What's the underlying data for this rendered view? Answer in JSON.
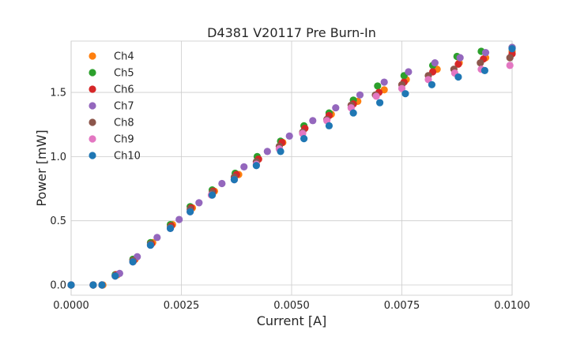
{
  "chart_data": {
    "type": "scatter",
    "title": "D4381 V20117 Pre Burn-In",
    "xlabel": "Current [A]",
    "ylabel": "Power [mW]",
    "xlim": [
      0.0,
      0.01
    ],
    "ylim": [
      -0.08,
      1.9
    ],
    "xticks": [
      0.0,
      0.0025,
      0.005,
      0.0075,
      0.01
    ],
    "xtick_labels": [
      "0.0000",
      "0.0025",
      "0.0050",
      "0.0075",
      "0.0100"
    ],
    "yticks": [
      0.0,
      0.5,
      1.0,
      1.5
    ],
    "ytick_labels": [
      "0.0",
      "0.5",
      "1.0",
      "1.5"
    ],
    "grid": true,
    "legend_position": "top-left",
    "series": [
      {
        "name": "Ch4",
        "color": "#ff7f0e",
        "x": [
          0.0,
          0.0005,
          0.00072,
          0.00105,
          0.00145,
          0.00185,
          0.0023,
          0.00275,
          0.00325,
          0.0038,
          0.00425,
          0.0048,
          0.0053,
          0.0059,
          0.0065,
          0.0071,
          0.0076,
          0.0083,
          0.0088,
          0.0094,
          0.01
        ],
        "y": [
          0.0,
          0.0,
          0.0,
          0.08,
          0.2,
          0.33,
          0.47,
          0.6,
          0.73,
          0.86,
          0.98,
          1.11,
          1.22,
          1.33,
          1.43,
          1.52,
          1.6,
          1.68,
          1.73,
          1.77,
          1.82
        ]
      },
      {
        "name": "Ch5",
        "color": "#2ca02c",
        "x": [
          0.0,
          0.0005,
          0.0007,
          0.001,
          0.0014,
          0.0018,
          0.00225,
          0.0027,
          0.0032,
          0.00372,
          0.00422,
          0.00475,
          0.00528,
          0.00585,
          0.0064,
          0.00695,
          0.00755,
          0.0082,
          0.00875,
          0.0093,
          0.01
        ],
        "y": [
          0.0,
          0.0,
          0.0,
          0.08,
          0.2,
          0.33,
          0.47,
          0.61,
          0.74,
          0.87,
          1.0,
          1.12,
          1.24,
          1.34,
          1.44,
          1.55,
          1.63,
          1.71,
          1.78,
          1.82,
          1.85
        ]
      },
      {
        "name": "Ch6",
        "color": "#d62728",
        "x": [
          0.0,
          0.0005,
          0.0007,
          0.00102,
          0.00142,
          0.00182,
          0.00227,
          0.00272,
          0.00322,
          0.00375,
          0.00425,
          0.00478,
          0.0053,
          0.00585,
          0.0064,
          0.00698,
          0.00755,
          0.0082,
          0.00878,
          0.00935,
          0.01
        ],
        "y": [
          0.0,
          0.0,
          0.0,
          0.08,
          0.19,
          0.32,
          0.46,
          0.6,
          0.73,
          0.86,
          0.98,
          1.11,
          1.22,
          1.32,
          1.41,
          1.5,
          1.58,
          1.66,
          1.72,
          1.76,
          1.8
        ]
      },
      {
        "name": "Ch7",
        "color": "#9467bd",
        "x": [
          0.0,
          0.0005,
          0.0007,
          0.0011,
          0.0015,
          0.00195,
          0.00245,
          0.0029,
          0.00342,
          0.00392,
          0.00445,
          0.00495,
          0.00548,
          0.006,
          0.00655,
          0.0071,
          0.00765,
          0.00825,
          0.00882,
          0.0094,
          0.01
        ],
        "y": [
          0.0,
          0.0,
          0.0,
          0.09,
          0.22,
          0.37,
          0.51,
          0.64,
          0.79,
          0.92,
          1.04,
          1.16,
          1.28,
          1.38,
          1.48,
          1.58,
          1.66,
          1.73,
          1.77,
          1.81,
          1.85
        ]
      },
      {
        "name": "Ch8",
        "color": "#8c564b",
        "x": [
          0.0,
          0.0005,
          0.0007,
          0.001,
          0.0014,
          0.0018,
          0.00225,
          0.0027,
          0.0032,
          0.0037,
          0.0042,
          0.00472,
          0.00525,
          0.0058,
          0.00635,
          0.0069,
          0.0075,
          0.0081,
          0.00868,
          0.00928,
          0.00995
        ],
        "y": [
          0.0,
          0.0,
          0.0,
          0.07,
          0.19,
          0.32,
          0.45,
          0.59,
          0.72,
          0.84,
          0.96,
          1.08,
          1.19,
          1.29,
          1.4,
          1.48,
          1.56,
          1.63,
          1.68,
          1.73,
          1.77
        ]
      },
      {
        "name": "Ch9",
        "color": "#e377c2",
        "x": [
          0.0,
          0.0005,
          0.0007,
          0.001,
          0.0014,
          0.0018,
          0.00225,
          0.0027,
          0.00318,
          0.0037,
          0.0042,
          0.00472,
          0.00525,
          0.0058,
          0.00635,
          0.00692,
          0.0075,
          0.0081,
          0.0087,
          0.0093,
          0.00995
        ],
        "y": [
          0.0,
          0.0,
          0.0,
          0.07,
          0.18,
          0.31,
          0.44,
          0.57,
          0.7,
          0.82,
          0.94,
          1.06,
          1.18,
          1.28,
          1.38,
          1.47,
          1.53,
          1.6,
          1.65,
          1.68,
          1.71
        ]
      },
      {
        "name": "Ch10",
        "color": "#1f77b4",
        "x": [
          0.0,
          0.0005,
          0.0007,
          0.001,
          0.0014,
          0.0018,
          0.00225,
          0.0027,
          0.0032,
          0.0037,
          0.0042,
          0.00475,
          0.00528,
          0.00585,
          0.0064,
          0.007,
          0.00758,
          0.00818,
          0.00878,
          0.00938,
          0.01
        ],
        "y": [
          0.0,
          0.0,
          0.0,
          0.07,
          0.18,
          0.31,
          0.44,
          0.57,
          0.7,
          0.82,
          0.93,
          1.04,
          1.14,
          1.24,
          1.34,
          1.42,
          1.49,
          1.56,
          1.62,
          1.67,
          1.84
        ]
      }
    ]
  }
}
